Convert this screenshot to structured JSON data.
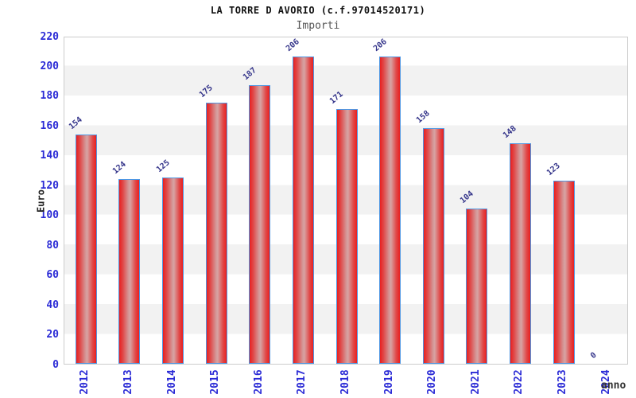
{
  "header": {
    "title": "LA TORRE D AVORIO (c.f.97014520171)",
    "subtitle": "Importi"
  },
  "chart_data": {
    "type": "bar",
    "title": "LA TORRE D AVORIO (c.f.97014520171)",
    "subtitle": "Importi",
    "xlabel": "anno",
    "ylabel": "Euro",
    "categories": [
      "2012",
      "2013",
      "2014",
      "2015",
      "2016",
      "2017",
      "2018",
      "2019",
      "2020",
      "2021",
      "2022",
      "2023",
      "2024"
    ],
    "values": [
      154,
      124,
      125,
      175,
      187,
      206,
      171,
      206,
      158,
      104,
      148,
      123,
      0
    ],
    "ylim": [
      0,
      220
    ],
    "y_ticks": [
      0,
      20,
      40,
      60,
      80,
      100,
      120,
      140,
      160,
      180,
      200,
      220
    ],
    "legend_position": "none",
    "grid": "alternating-horizontal-bands",
    "colors": {
      "bar_edge": "#e91f1f",
      "bar_center": "#d49a9a",
      "bar_border": "#4f97e3",
      "axis_tick_label": "#2b2bd6",
      "value_label": "#34348a",
      "band": "#f2f2f2",
      "band_alt": "#ffffff",
      "plot_border": "#cccccc",
      "title": "#111111",
      "subtitle": "#555555",
      "axis_title": "#222222"
    }
  }
}
